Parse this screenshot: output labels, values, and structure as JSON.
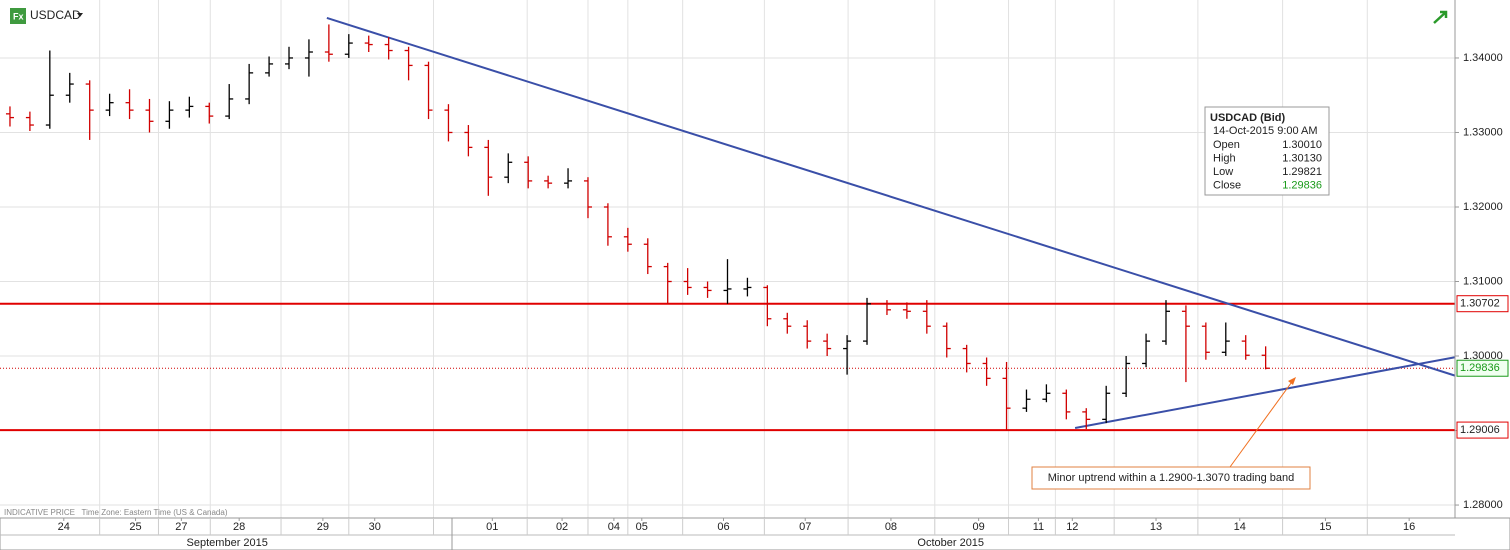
{
  "header": {
    "symbol": "USDCAD"
  },
  "footer_note": "INDICATIVE PRICE   Time Zone: Eastern Time (US & Canada)",
  "chart_data": {
    "type": "ohlc",
    "x": [
      0.5,
      1.5,
      2.5,
      3.5,
      4.5,
      5.5,
      6.5,
      7.5,
      8.5,
      9.5,
      10.5,
      11.5,
      12.5,
      13.5,
      14.5,
      15.5,
      16.5,
      17.5,
      18.5,
      19.5,
      20.5,
      21.5,
      22.5,
      23.5,
      24.5,
      25.5,
      26.5,
      27.5,
      28.5,
      29.5,
      30.5,
      31.5,
      32.5,
      33.5,
      34.5,
      35.5,
      36.5,
      37.5,
      38.5,
      39.5,
      40.5,
      41.5,
      42.5,
      43.5,
      44.5,
      45.5,
      46.5,
      47.5,
      48.5,
      49.5,
      50.5,
      51.5,
      52.5,
      53.5,
      54.5,
      55.5,
      56.5,
      57.5,
      58.5,
      59.5,
      60.5,
      61.5,
      62.5,
      63.5
    ],
    "open": [
      1.3325,
      1.332,
      1.331,
      1.335,
      1.3365,
      1.333,
      1.334,
      1.333,
      1.3315,
      1.333,
      1.3335,
      1.3322,
      1.3345,
      1.338,
      1.3392,
      1.34,
      1.3408,
      1.3405,
      1.342,
      1.3418,
      1.341,
      1.339,
      1.333,
      1.33,
      1.328,
      1.324,
      1.326,
      1.3235,
      1.3232,
      1.3235,
      1.32,
      1.316,
      1.315,
      1.312,
      1.31,
      1.3092,
      1.3088,
      1.309,
      1.3092,
      1.305,
      1.304,
      1.302,
      1.301,
      1.302,
      1.307,
      1.3062,
      1.306,
      1.304,
      1.301,
      1.299,
      1.297,
      1.293,
      1.2942,
      1.295,
      1.2925,
      1.2915,
      1.295,
      1.299,
      1.302,
      1.306,
      1.304,
      1.3005,
      1.302,
      1.3001
    ],
    "high": [
      1.3335,
      1.3328,
      1.341,
      1.338,
      1.337,
      1.3352,
      1.3358,
      1.3345,
      1.3342,
      1.3348,
      1.334,
      1.3365,
      1.3392,
      1.3402,
      1.3415,
      1.3425,
      1.3445,
      1.3432,
      1.343,
      1.3428,
      1.3415,
      1.3395,
      1.3338,
      1.331,
      1.329,
      1.3272,
      1.3268,
      1.3242,
      1.3252,
      1.324,
      1.3205,
      1.3172,
      1.3158,
      1.3125,
      1.3118,
      1.31,
      1.313,
      1.3105,
      1.3095,
      1.3058,
      1.3048,
      1.303,
      1.3028,
      1.3078,
      1.3075,
      1.3072,
      1.3075,
      1.3045,
      1.3015,
      1.2998,
      1.2992,
      1.2955,
      1.2962,
      1.2955,
      1.293,
      1.296,
      1.3,
      1.303,
      1.3075,
      1.3068,
      1.3045,
      1.3045,
      1.3028,
      1.3013
    ],
    "low": [
      1.3308,
      1.3302,
      1.3305,
      1.334,
      1.329,
      1.3322,
      1.3318,
      1.33,
      1.3305,
      1.332,
      1.3312,
      1.3318,
      1.3338,
      1.3375,
      1.3385,
      1.3375,
      1.3395,
      1.34,
      1.3408,
      1.3398,
      1.337,
      1.3318,
      1.3288,
      1.3268,
      1.3215,
      1.3232,
      1.3225,
      1.3225,
      1.3225,
      1.3185,
      1.3148,
      1.314,
      1.311,
      1.307,
      1.3082,
      1.3078,
      1.307,
      1.308,
      1.304,
      1.303,
      1.301,
      1.3,
      1.2975,
      1.3015,
      1.3055,
      1.305,
      1.303,
      1.2998,
      1.2978,
      1.296,
      1.29,
      1.2925,
      1.2938,
      1.2915,
      1.2902,
      1.291,
      1.2945,
      1.2985,
      1.3015,
      1.2965,
      1.2995,
      1.3,
      1.2995,
      1.29821
    ],
    "close": [
      1.332,
      1.331,
      1.335,
      1.3365,
      1.333,
      1.334,
      1.333,
      1.3315,
      1.333,
      1.3335,
      1.3322,
      1.3345,
      1.338,
      1.3392,
      1.34,
      1.3408,
      1.3405,
      1.342,
      1.3418,
      1.341,
      1.339,
      1.333,
      1.33,
      1.328,
      1.324,
      1.326,
      1.3235,
      1.3232,
      1.3235,
      1.32,
      1.316,
      1.315,
      1.312,
      1.31,
      1.3092,
      1.3088,
      1.309,
      1.3092,
      1.305,
      1.304,
      1.302,
      1.301,
      1.302,
      1.307,
      1.3062,
      1.306,
      1.304,
      1.301,
      1.299,
      1.297,
      1.293,
      1.2942,
      1.295,
      1.2925,
      1.2915,
      1.295,
      1.299,
      1.302,
      1.306,
      1.304,
      1.3005,
      1.302,
      1.3001,
      1.29836
    ],
    "up_color": "#000000",
    "down_color": "#d00000",
    "xlim": [
      0,
      73
    ],
    "ylim": [
      1.27826,
      1.34778
    ],
    "xticks": [
      {
        "value": 3.2,
        "label": "24"
      },
      {
        "value": 6.8,
        "label": "25"
      },
      {
        "value": 9.1,
        "label": "27"
      },
      {
        "value": 12.0,
        "label": "28"
      },
      {
        "value": 16.2,
        "label": "29"
      },
      {
        "value": 18.8,
        "label": "30"
      },
      {
        "value": 24.7,
        "label": "01"
      },
      {
        "value": 28.2,
        "label": "02"
      },
      {
        "value": 30.8,
        "label": "04"
      },
      {
        "value": 32.2,
        "label": "05"
      },
      {
        "value": 36.3,
        "label": "06"
      },
      {
        "value": 40.4,
        "label": "07"
      },
      {
        "value": 44.7,
        "label": "08"
      },
      {
        "value": 49.1,
        "label": "09"
      },
      {
        "value": 52.1,
        "label": "11"
      },
      {
        "value": 53.8,
        "label": "12"
      },
      {
        "value": 58.0,
        "label": "13"
      },
      {
        "value": 62.2,
        "label": "14"
      },
      {
        "value": 66.5,
        "label": "15"
      },
      {
        "value": 70.7,
        "label": "16"
      }
    ],
    "months": [
      {
        "value": 11.4,
        "label": "September 2015"
      },
      {
        "value": 47.7,
        "label": "October 2015"
      }
    ],
    "yticks": [
      {
        "value": 1.28,
        "label": "1.28000"
      },
      {
        "value": 1.29,
        "label": "1.29000"
      },
      {
        "value": 1.3,
        "label": "1.30000"
      },
      {
        "value": 1.31,
        "label": "1.31000"
      },
      {
        "value": 1.32,
        "label": "1.32000"
      },
      {
        "value": 1.33,
        "label": "1.33000"
      },
      {
        "value": 1.34,
        "label": "1.34000"
      }
    ],
    "levels": [
      {
        "value": 1.30702,
        "color": "#e00000",
        "style": "solid"
      },
      {
        "value": 1.29006,
        "color": "#e00000",
        "style": "solid"
      },
      {
        "value": 1.29836,
        "color": "#1a9a1a",
        "style": "dotted"
      }
    ],
    "trendlines": [
      {
        "x": [
          16.4,
          73
        ],
        "y": [
          1.34537,
          1.29737
        ],
        "color": "#3a4fa8"
      },
      {
        "x": [
          53.94,
          73
        ],
        "y": [
          1.29034,
          1.29984
        ],
        "color": "#3a4fa8"
      }
    ],
    "annotation": "Minor uptrend within a 1.2900-1.3070 trading band",
    "grid": true
  },
  "tooltip": {
    "title": "USDCAD (Bid)",
    "date": "14-Oct-2015 9:00 AM",
    "rows": [
      [
        "Open",
        "1.30010"
      ],
      [
        "High",
        "1.30130"
      ],
      [
        "Low",
        "1.29821"
      ],
      [
        "Close",
        "1.29836"
      ]
    ]
  }
}
